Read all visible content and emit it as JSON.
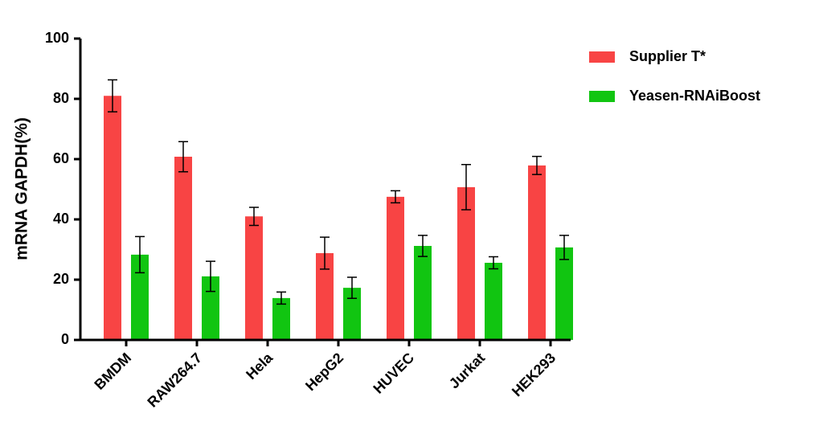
{
  "chart_data": {
    "type": "bar",
    "y_label": "mRNA GAPDH(%)",
    "categories": [
      "BMDM",
      "RAW264.7",
      "Hela",
      "HepG2",
      "HUVEC",
      "Jurkat",
      "HEK293"
    ],
    "series": [
      {
        "name": "Supplier T*",
        "color": "#f84444",
        "values": [
          81,
          60.8,
          41,
          28.8,
          47.5,
          50.7,
          57.9
        ],
        "errors": [
          5.3,
          5,
          3,
          5.3,
          2,
          7.5,
          3
        ]
      },
      {
        "name": "Yeasen-RNAiBoost",
        "color": "#11c511",
        "values": [
          28.3,
          21.1,
          13.9,
          17.3,
          31.2,
          25.6,
          30.7
        ],
        "errors": [
          6,
          5,
          2,
          3.5,
          3.5,
          2,
          4
        ]
      }
    ],
    "ylim": [
      0,
      100
    ],
    "yticks": [
      0,
      20,
      40,
      60,
      80,
      100
    ],
    "legend": "right"
  }
}
